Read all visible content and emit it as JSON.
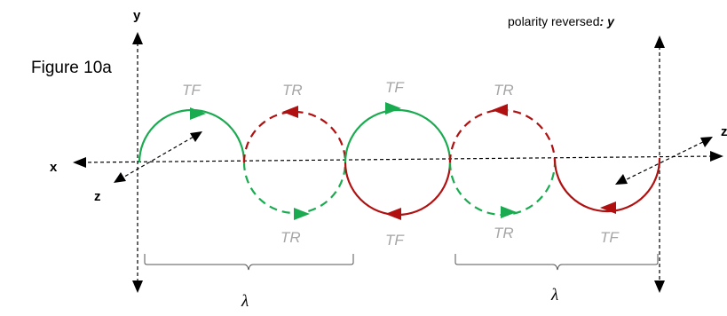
{
  "figure_label": "Figure 10a",
  "left_axis": {
    "y_label": "y",
    "x_label": "x",
    "z_label": "z"
  },
  "right_axis": {
    "polarity_label": "polarity reversed",
    "y_label": "y",
    "z_label": "z"
  },
  "top_labels": [
    "TF",
    "TR",
    "TF",
    "TR"
  ],
  "bottom_labels": [
    "TR",
    "TF",
    "TR",
    "TF"
  ],
  "wavelength_labels": [
    "λ",
    "λ"
  ],
  "colors": {
    "forward": "#1aaa50",
    "reverse": "#b01010",
    "label_gray": "#a6a6a6"
  }
}
